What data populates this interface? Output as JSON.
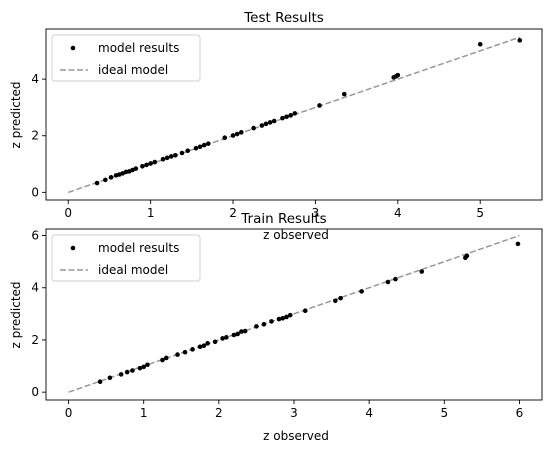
{
  "chart_data": [
    {
      "type": "scatter",
      "title": "Test Results",
      "xlabel": "z observed",
      "ylabel": "z predicted",
      "xlim": [
        -0.27,
        5.75
      ],
      "ylim": [
        -0.27,
        5.77
      ],
      "xticks": [
        "0",
        "1",
        "2",
        "3",
        "4",
        "5"
      ],
      "yticks": [
        "0",
        "2",
        "4"
      ],
      "legend_position": "top-left",
      "series": [
        {
          "name": "model results",
          "kind": "points",
          "color": "#000000",
          "x": [
            0.35,
            0.45,
            0.52,
            0.58,
            0.62,
            0.66,
            0.7,
            0.74,
            0.78,
            0.82,
            0.9,
            0.95,
            1.0,
            1.05,
            1.15,
            1.2,
            1.25,
            1.3,
            1.38,
            1.45,
            1.55,
            1.6,
            1.65,
            1.7,
            1.9,
            2.0,
            2.05,
            2.1,
            2.25,
            2.35,
            2.4,
            2.45,
            2.5,
            2.6,
            2.65,
            2.7,
            2.75,
            3.05,
            3.35,
            3.95,
            3.98,
            4.0,
            5.0,
            5.48
          ],
          "y": [
            0.33,
            0.44,
            0.53,
            0.6,
            0.63,
            0.67,
            0.72,
            0.74,
            0.79,
            0.84,
            0.92,
            0.97,
            1.02,
            1.07,
            1.17,
            1.22,
            1.27,
            1.31,
            1.39,
            1.47,
            1.56,
            1.61,
            1.67,
            1.72,
            1.93,
            2.01,
            2.06,
            2.12,
            2.27,
            2.36,
            2.42,
            2.47,
            2.52,
            2.62,
            2.67,
            2.72,
            2.79,
            3.07,
            3.47,
            4.06,
            4.1,
            4.14,
            5.23,
            5.37
          ]
        },
        {
          "name": "ideal model",
          "kind": "dashed-line",
          "color": "#999999",
          "x": [
            0,
            5.48
          ],
          "y": [
            0,
            5.48
          ]
        }
      ]
    },
    {
      "type": "scatter",
      "title": "Train Results",
      "xlabel": "z observed",
      "ylabel": "z predicted",
      "xlim": [
        -0.3,
        6.3
      ],
      "ylim": [
        -0.3,
        6.25
      ],
      "xticks": [
        "0",
        "1",
        "2",
        "3",
        "4",
        "5",
        "6"
      ],
      "yticks": [
        "0",
        "2",
        "4",
        "6"
      ],
      "legend_position": "top-left",
      "series": [
        {
          "name": "model results",
          "kind": "points",
          "color": "#000000",
          "x": [
            0.42,
            0.55,
            0.7,
            0.78,
            0.85,
            0.95,
            1.0,
            1.05,
            1.25,
            1.3,
            1.45,
            1.55,
            1.65,
            1.75,
            1.8,
            1.85,
            1.95,
            2.05,
            2.1,
            2.2,
            2.25,
            2.3,
            2.35,
            2.5,
            2.6,
            2.7,
            2.8,
            2.85,
            2.9,
            2.95,
            3.15,
            3.55,
            3.62,
            3.9,
            4.25,
            4.35,
            4.7,
            5.28,
            5.3,
            5.98
          ],
          "y": [
            0.4,
            0.55,
            0.68,
            0.77,
            0.83,
            0.92,
            0.97,
            1.05,
            1.23,
            1.31,
            1.44,
            1.53,
            1.64,
            1.74,
            1.78,
            1.87,
            1.93,
            2.06,
            2.1,
            2.19,
            2.23,
            2.32,
            2.34,
            2.52,
            2.6,
            2.71,
            2.8,
            2.83,
            2.88,
            2.95,
            3.12,
            3.5,
            3.6,
            3.86,
            4.22,
            4.33,
            4.62,
            5.15,
            5.22,
            5.68
          ]
        },
        {
          "name": "ideal model",
          "kind": "dashed-line",
          "color": "#999999",
          "x": [
            0,
            6
          ],
          "y": [
            0,
            6
          ]
        }
      ]
    }
  ]
}
